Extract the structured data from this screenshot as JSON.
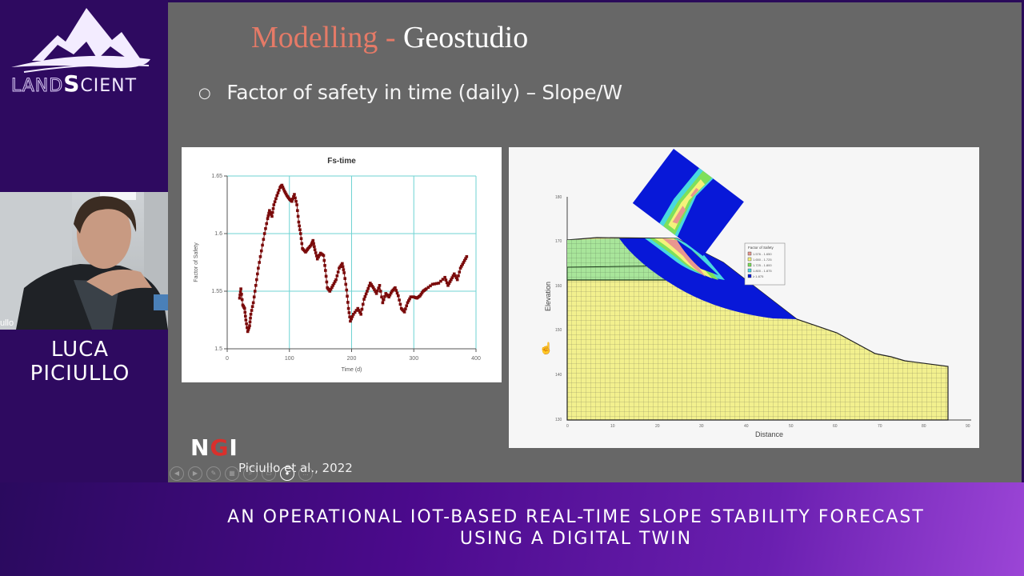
{
  "brand": {
    "logo_left": "LAND",
    "logo_s": "S",
    "logo_right": "CIENT"
  },
  "speaker": {
    "name_line1": "LUCA",
    "name_line2": "PICIULLO",
    "webcam_label_fragment": "ullo"
  },
  "slide": {
    "title_accent": "Modelling -",
    "title_main": " Geostudio",
    "bullet_mark": "○",
    "bullet_text": "Factor of safety in time (daily) – Slope/W",
    "ngi_logo_a": "N",
    "ngi_logo_g": "G",
    "ngi_logo_i": "I",
    "citation": "Piciullo et al., 2022",
    "controls": [
      "prev-icon",
      "next-icon",
      "pen-icon",
      "slides-icon",
      "zoom-icon",
      "subtitles-icon",
      "camera-icon",
      "more-icon"
    ],
    "colors": {
      "title_accent": "#e57a67",
      "slide_bg": "#676767",
      "series": "#7a0a0a"
    }
  },
  "banner": {
    "line1": "An operational IoT-based real-time slope stability forecast",
    "line2": "using a digital twin"
  },
  "chart_data": [
    {
      "type": "scatter",
      "title": "Fs-time",
      "xlabel": "Time (d)",
      "ylabel": "Factor of Safety",
      "xlim": [
        0,
        400
      ],
      "ylim": [
        1.5,
        1.65
      ],
      "xticks": [
        "0",
        "100",
        "200",
        "300",
        "400"
      ],
      "yticks": [
        "1.5",
        "1.55",
        "1.6",
        "1.65"
      ],
      "grid": true,
      "series": [
        {
          "name": "Fs",
          "color": "#7a0a0a",
          "x": [
            20,
            22,
            25,
            28,
            30,
            33,
            36,
            38,
            42,
            46,
            50,
            55,
            60,
            65,
            68,
            72,
            75,
            80,
            85,
            88,
            92,
            96,
            100,
            104,
            108,
            112,
            115,
            118,
            121,
            126,
            130,
            135,
            138,
            141,
            145,
            150,
            155,
            158,
            161,
            165,
            170,
            175,
            180,
            185,
            188,
            192,
            195,
            198,
            203,
            210,
            215,
            220,
            225,
            230,
            235,
            240,
            245,
            250,
            255,
            260,
            265,
            270,
            275,
            280,
            285,
            290,
            295,
            300,
            305,
            310,
            315,
            320,
            330,
            340,
            350,
            355,
            360,
            365,
            370,
            375,
            380,
            385
          ],
          "y": [
            1.544,
            1.552,
            1.538,
            1.535,
            1.525,
            1.515,
            1.52,
            1.53,
            1.54,
            1.555,
            1.57,
            1.585,
            1.6,
            1.613,
            1.62,
            1.615,
            1.625,
            1.633,
            1.64,
            1.642,
            1.637,
            1.633,
            1.63,
            1.628,
            1.634,
            1.625,
            1.61,
            1.6,
            1.587,
            1.584,
            1.587,
            1.59,
            1.594,
            1.586,
            1.578,
            1.583,
            1.581,
            1.568,
            1.553,
            1.55,
            1.555,
            1.56,
            1.57,
            1.574,
            1.566,
            1.551,
            1.535,
            1.524,
            1.53,
            1.535,
            1.53,
            1.543,
            1.55,
            1.557,
            1.553,
            1.548,
            1.555,
            1.54,
            1.548,
            1.545,
            1.55,
            1.553,
            1.546,
            1.535,
            1.532,
            1.54,
            1.545,
            1.545,
            1.544,
            1.546,
            1.55,
            1.552,
            1.556,
            1.557,
            1.562,
            1.555,
            1.56,
            1.565,
            1.56,
            1.57,
            1.575,
            1.58
          ]
        }
      ]
    },
    {
      "type": "heatmap",
      "title": "",
      "xlabel": "Distance",
      "ylabel": "Elevation",
      "xlim": [
        0,
        90
      ],
      "ylim": [
        130,
        180
      ],
      "xticks": [
        "0",
        "10",
        "20",
        "30",
        "40",
        "50",
        "60",
        "70",
        "80",
        "90"
      ],
      "yticks": [
        "130",
        "140",
        "150",
        "160",
        "170",
        "180"
      ],
      "legend": {
        "title": "Factor of Safety",
        "entries": [
          "1.576 - 1.650",
          "1.650 - 1.725",
          "1.725 - 1.800",
          "1.800 - 1.875",
          "≥ 1.875"
        ],
        "colors": [
          "#e8968f",
          "#f4f27a",
          "#7ee05a",
          "#48d8e0",
          "#0818d8"
        ]
      }
    }
  ]
}
